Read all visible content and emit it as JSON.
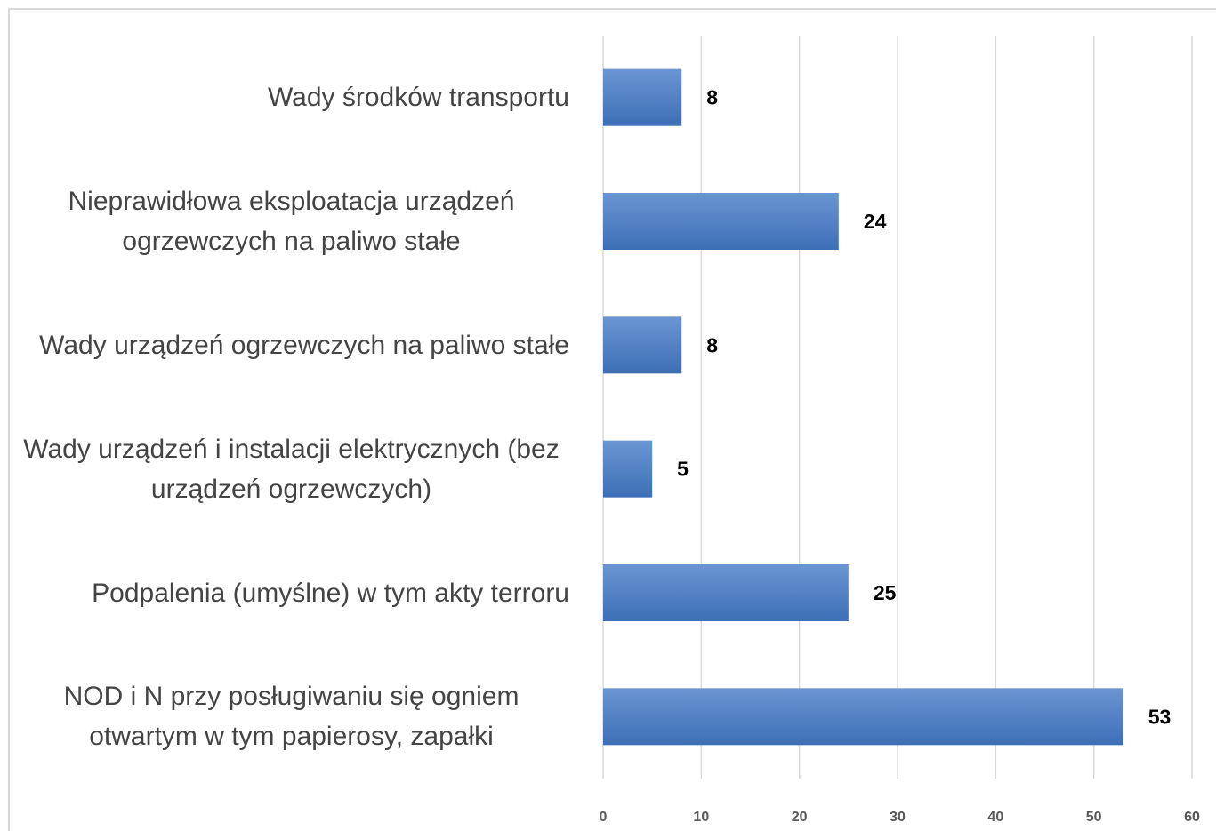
{
  "chart_data": {
    "type": "barh",
    "categories": [
      "Wady środków transportu",
      "Nieprawidłowa eksploatacja urządzeń ogrzewczych na paliwo stałe",
      "Wady urządzeń ogrzewczych na paliwo stałe",
      "Wady urządzeń i instalacji elektrycznych (bez urządzeń ogrzewczych)",
      "Podpalenia (umyślne) w tym akty terroru",
      "NOD i N przy posługiwaniu się ogniem otwartym w tym papierosy, zapałki"
    ],
    "values": [
      8,
      24,
      8,
      5,
      25,
      53
    ],
    "color": "#4a7cc4",
    "xlim": [
      0,
      60
    ],
    "xticks": [
      0,
      10,
      20,
      30,
      40,
      50,
      60
    ],
    "grid": true
  }
}
